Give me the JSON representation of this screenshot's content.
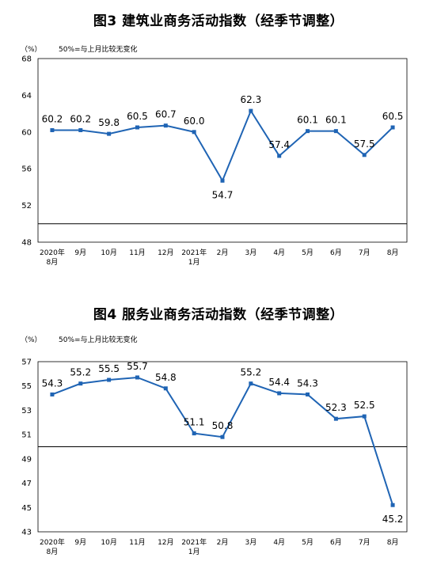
{
  "chart_data": [
    {
      "type": "line",
      "title": "图3  建筑业商务活动指数（经季节调整）",
      "unit": "（%）",
      "note": "50%=与上月比较无变化",
      "categories": [
        "2020年\n8月",
        "9月",
        "10月",
        "11月",
        "12月",
        "2021年\n1月",
        "2月",
        "3月",
        "4月",
        "5月",
        "6月",
        "7月",
        "8月"
      ],
      "values": [
        60.2,
        60.2,
        59.8,
        60.5,
        60.7,
        60.0,
        54.7,
        62.3,
        57.4,
        60.1,
        60.1,
        57.5,
        60.5
      ],
      "data_labels": [
        "60.2",
        "60.2",
        "59.8",
        "60.5",
        "60.7",
        "60.0",
        "54.7",
        "62.3",
        "57.4",
        "60.1",
        "60.1",
        "57.5",
        "60.5"
      ],
      "label_pos": [
        "above",
        "above",
        "above",
        "above",
        "above",
        "above",
        "below",
        "above",
        "above",
        "above",
        "above",
        "above",
        "above"
      ],
      "yticks": [
        "48",
        "52",
        "56",
        "60",
        "64",
        "68"
      ],
      "ylim": [
        48,
        68
      ],
      "reference_line": 50,
      "color": "#1f64b4",
      "grid": false
    },
    {
      "type": "line",
      "title": "图4  服务业商务活动指数（经季节调整）",
      "unit": "（%）",
      "note": "50%=与上月比较无变化",
      "categories": [
        "2020年\n8月",
        "9月",
        "10月",
        "11月",
        "12月",
        "2021年\n1月",
        "2月",
        "3月",
        "4月",
        "5月",
        "6月",
        "7月",
        "8月"
      ],
      "values": [
        54.3,
        55.2,
        55.5,
        55.7,
        54.8,
        51.1,
        50.8,
        55.2,
        54.4,
        54.3,
        52.3,
        52.5,
        45.2
      ],
      "data_labels": [
        "54.3",
        "55.2",
        "55.5",
        "55.7",
        "54.8",
        "51.1",
        "50.8",
        "55.2",
        "54.4",
        "54.3",
        "52.3",
        "52.5",
        "45.2"
      ],
      "label_pos": [
        "above",
        "above",
        "above",
        "above",
        "above",
        "above",
        "above",
        "above",
        "above",
        "above",
        "above",
        "above",
        "below"
      ],
      "yticks": [
        "43",
        "45",
        "47",
        "49",
        "51",
        "53",
        "55",
        "57"
      ],
      "ylim": [
        43,
        57
      ],
      "reference_line": 50,
      "color": "#1f64b4",
      "grid": false
    }
  ]
}
